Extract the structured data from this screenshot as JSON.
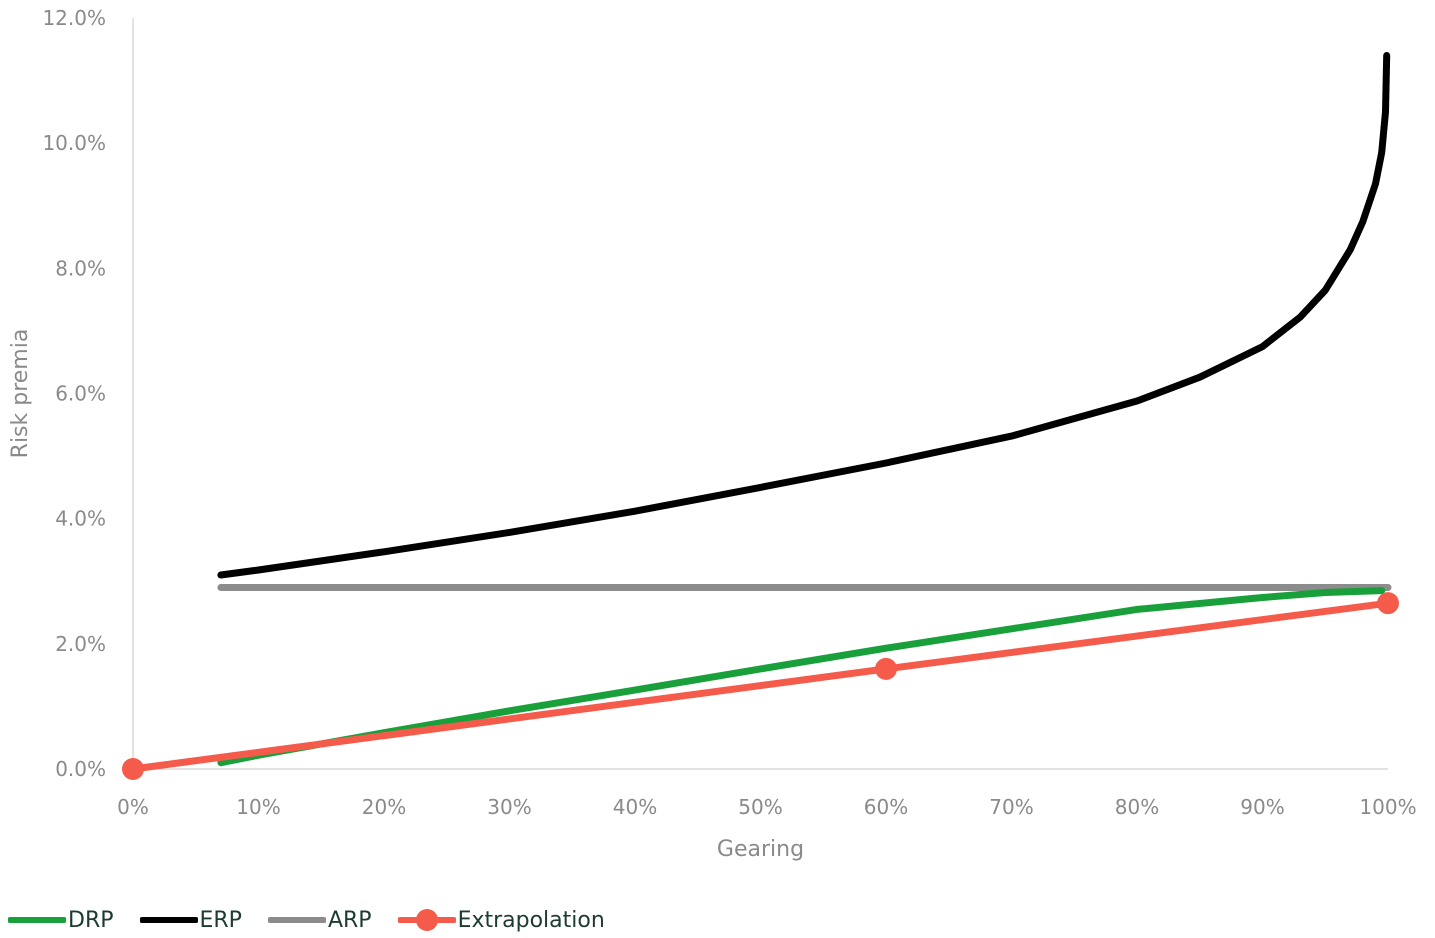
{
  "chart_data": {
    "type": "line",
    "title": "",
    "xlabel": "Gearing",
    "ylabel": "Risk premia",
    "xlim": [
      0,
      1
    ],
    "ylim": [
      0,
      0.12
    ],
    "x_ticks": [
      0,
      0.1,
      0.2,
      0.3,
      0.4,
      0.5,
      0.6,
      0.7,
      0.8,
      0.9,
      1.0
    ],
    "x_tick_labels": [
      "0%",
      "10%",
      "20%",
      "30%",
      "40%",
      "50%",
      "60%",
      "70%",
      "80%",
      "90%",
      "100%"
    ],
    "y_ticks": [
      0,
      0.02,
      0.04,
      0.06,
      0.08,
      0.1,
      0.12
    ],
    "y_tick_labels": [
      "0.0%",
      "2.0%",
      "4.0%",
      "6.0%",
      "8.0%",
      "10.0%",
      "12.0%"
    ],
    "grid": false,
    "legend_position": "bottom-left",
    "series": [
      {
        "name": "DRP",
        "color": "#1aa03a",
        "markers": false,
        "x": [
          0.07,
          0.1,
          0.2,
          0.3,
          0.4,
          0.5,
          0.6,
          0.7,
          0.8,
          0.9,
          0.95,
          0.995
        ],
        "y": [
          0.001,
          0.0022,
          0.0058,
          0.0093,
          0.0126,
          0.016,
          0.0193,
          0.0224,
          0.0255,
          0.0274,
          0.0282,
          0.0285
        ]
      },
      {
        "name": "ERP",
        "color": "#000000",
        "markers": false,
        "x": [
          0.07,
          0.1,
          0.2,
          0.3,
          0.4,
          0.5,
          0.6,
          0.7,
          0.8,
          0.85,
          0.9,
          0.93,
          0.95,
          0.97,
          0.98,
          0.99,
          0.995,
          0.998,
          0.999
        ],
        "y": [
          0.031,
          0.0318,
          0.0347,
          0.0378,
          0.0412,
          0.045,
          0.0489,
          0.0532,
          0.0588,
          0.0626,
          0.0675,
          0.0722,
          0.0765,
          0.083,
          0.0875,
          0.0935,
          0.0985,
          0.105,
          0.114
        ]
      },
      {
        "name": "ARP",
        "color": "#8c8c8c",
        "markers": false,
        "x": [
          0.07,
          1.0
        ],
        "y": [
          0.029,
          0.029
        ]
      },
      {
        "name": "Extrapolation",
        "color": "#f45b4b",
        "markers": true,
        "x": [
          0,
          0.6,
          1.0
        ],
        "y": [
          0.0,
          0.016,
          0.0265
        ]
      }
    ]
  }
}
